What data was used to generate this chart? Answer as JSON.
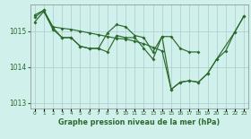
{
  "bg_color": "#cff0eb",
  "grid_color": "#aacccc",
  "line_color": "#2d6a2d",
  "xlabel": "Graphe pression niveau de la mer (hPa)",
  "xlabel_color": "#2d6a2d",
  "ylim": [
    1012.85,
    1015.75
  ],
  "xlim": [
    -0.5,
    23.5
  ],
  "yticks": [
    1013,
    1014,
    1015
  ],
  "xticks": [
    0,
    1,
    2,
    3,
    4,
    5,
    6,
    7,
    8,
    9,
    10,
    11,
    12,
    13,
    14,
    15,
    16,
    17,
    18,
    19,
    20,
    21,
    22,
    23
  ],
  "series1_x": [
    0,
    1,
    2,
    3,
    4,
    5,
    6,
    7,
    8,
    9,
    10,
    11,
    12,
    13,
    14,
    15,
    16,
    17,
    18
  ],
  "series1_y": [
    1015.25,
    1015.55,
    1015.05,
    1014.82,
    1014.82,
    1014.58,
    1014.52,
    1014.52,
    1014.42,
    1014.88,
    1014.82,
    1014.82,
    1014.52,
    1014.22,
    1014.85,
    1014.85,
    1014.52,
    1014.42,
    1014.42
  ],
  "series2_x": [
    0,
    1,
    2,
    3,
    4,
    5,
    6,
    7,
    8,
    9,
    10,
    11,
    12,
    13,
    14,
    15,
    16,
    17,
    18,
    19,
    20,
    21,
    22,
    23
  ],
  "series2_y": [
    1015.45,
    1015.58,
    1015.12,
    1015.08,
    1015.05,
    1015.0,
    1014.95,
    1014.9,
    1014.85,
    1014.8,
    1014.78,
    1014.72,
    1014.65,
    1014.55,
    1014.45,
    1013.38,
    1013.58,
    1013.62,
    1013.58,
    1013.82,
    1014.22,
    1014.45,
    1014.98,
    1015.42
  ],
  "series3_x": [
    0,
    1,
    2,
    3,
    4,
    5,
    6,
    7,
    8,
    9,
    10,
    11,
    12,
    13,
    14,
    15,
    16,
    17,
    18,
    19,
    20,
    22,
    23
  ],
  "series3_y": [
    1015.38,
    1015.58,
    1015.1,
    1014.82,
    1014.82,
    1014.58,
    1014.52,
    1014.52,
    1014.95,
    1015.18,
    1015.12,
    1014.88,
    1014.82,
    1014.42,
    1014.85,
    1013.38,
    1013.58,
    1013.62,
    1013.58,
    1013.82,
    1014.22,
    1014.98,
    1015.42
  ]
}
